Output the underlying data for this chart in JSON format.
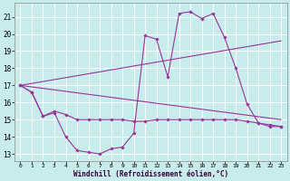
{
  "xlabel": "Windchill (Refroidissement éolien,°C)",
  "bg_color": "#c8ecec",
  "grid_color": "#ffffff",
  "line_color": "#993399",
  "xlim": [
    -0.5,
    23.5
  ],
  "ylim": [
    12.6,
    21.8
  ],
  "yticks": [
    13,
    14,
    15,
    16,
    17,
    18,
    19,
    20,
    21
  ],
  "xticks": [
    0,
    1,
    2,
    3,
    4,
    5,
    6,
    7,
    8,
    9,
    10,
    11,
    12,
    13,
    14,
    15,
    16,
    17,
    18,
    19,
    20,
    21,
    22,
    23
  ],
  "series": [
    {
      "x": [
        0,
        1,
        2,
        3,
        4,
        5,
        6,
        7,
        8,
        9,
        10,
        11,
        12,
        13,
        14,
        15,
        16,
        17,
        18,
        19,
        20,
        21,
        22,
        23
      ],
      "y": [
        17.0,
        16.6,
        15.2,
        15.4,
        14.0,
        13.2,
        13.1,
        13.0,
        13.3,
        13.4,
        14.2,
        19.9,
        19.7,
        17.5,
        21.2,
        21.3,
        20.9,
        21.2,
        19.8,
        18.0,
        15.9,
        14.8,
        14.6,
        14.6
      ],
      "has_markers": true
    },
    {
      "x": [
        0,
        1,
        2,
        3,
        4,
        5,
        6,
        7,
        8,
        9,
        10,
        11,
        12,
        13,
        14,
        15,
        16,
        17,
        18,
        19,
        20,
        21,
        22,
        23
      ],
      "y": [
        17.0,
        16.6,
        15.2,
        15.5,
        15.3,
        15.0,
        15.0,
        15.0,
        15.0,
        15.0,
        14.9,
        14.9,
        15.0,
        15.0,
        15.0,
        15.0,
        15.0,
        15.0,
        15.0,
        15.0,
        14.9,
        14.8,
        14.7,
        14.6
      ],
      "has_markers": true
    },
    {
      "x": [
        0,
        23
      ],
      "y": [
        17.0,
        19.6
      ],
      "has_markers": false
    },
    {
      "x": [
        0,
        23
      ],
      "y": [
        17.0,
        15.0
      ],
      "has_markers": false
    }
  ]
}
